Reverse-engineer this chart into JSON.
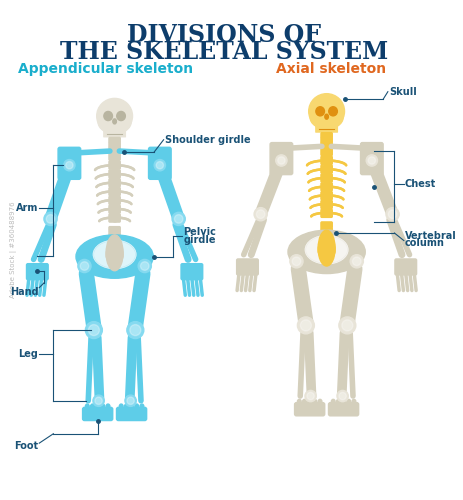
{
  "title_line1": "DIVISIONS OF",
  "title_line2": "THE SKELETAL SYSTEM",
  "title_color": "#0d3d6b",
  "title_fontsize": 17,
  "left_label": "Appendicular skeleton",
  "right_label": "Axial skeleton",
  "left_label_color": "#1aaecc",
  "right_label_color": "#e06820",
  "label_fontsize": 10,
  "annotation_color": "#1a5276",
  "annotation_fontsize": 7.0,
  "bg_color": "#ffffff",
  "bone_gray": "#d4cfbc",
  "bone_gray2": "#e8e4d8",
  "bone_gray_dark": "#b8b4a0",
  "app_blue": "#5ecde8",
  "app_blue2": "#85daf0",
  "app_blue_dark": "#2ab0d0",
  "axial_orange": "#f5c842",
  "axial_orange2": "#f8d870",
  "axial_orange_dark": "#e09010",
  "watermark": "Adobe Stock | #360488976"
}
